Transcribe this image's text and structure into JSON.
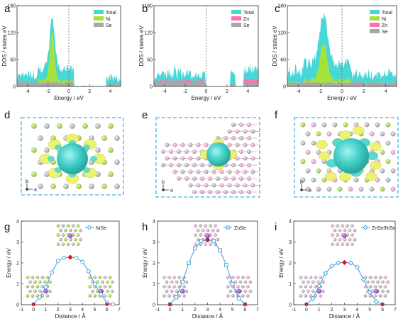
{
  "panel_letters": [
    "a",
    "b",
    "c",
    "d",
    "e",
    "f",
    "g",
    "h",
    "i"
  ],
  "colors": {
    "total": "#48d6d6",
    "ni": "#a6e23c",
    "zn": "#ff6fb0",
    "se": "#a7a7a7",
    "frame_dash": "#3bb6e0",
    "path_line": "#3a9fd8",
    "ts_marker": "#e01818",
    "iso_yellow": "#eef26a",
    "iso_cyan": "#4fd8d0"
  },
  "dos_panels": [
    {
      "id": "a",
      "ylabel": "DOS / states eV",
      "xlabel": "Energy / eV",
      "yticks": [
        "0",
        "60",
        "120",
        "180"
      ],
      "xticks": [
        "-4",
        "-2",
        "0",
        "2",
        "4"
      ],
      "legend": [
        {
          "name": "Total",
          "color": "#48d6d6"
        },
        {
          "name": "Ni",
          "color": "#a6e23c"
        },
        {
          "name": "Se",
          "color": "#a7a7a7"
        }
      ]
    },
    {
      "id": "b",
      "ylabel": "DOS / states eV",
      "xlabel": "Energy / eV",
      "yticks": [
        "0",
        "60",
        "120",
        "180"
      ],
      "xticks": [
        "-4",
        "-2",
        "0",
        "2",
        "4"
      ],
      "legend": [
        {
          "name": "Total",
          "color": "#48d6d6"
        },
        {
          "name": "Zn",
          "color": "#ff6fb0"
        },
        {
          "name": "Se",
          "color": "#a7a7a7"
        }
      ]
    },
    {
      "id": "c",
      "ylabel": "DOS / states eV",
      "xlabel": "Energy / eV",
      "yticks": [
        "0",
        "60",
        "120",
        "180"
      ],
      "xticks": [
        "-4",
        "-2",
        "0",
        "2",
        "4"
      ],
      "legend": [
        {
          "name": "Total",
          "color": "#48d6d6"
        },
        {
          "name": "Ni",
          "color": "#a6e23c"
        },
        {
          "name": "Zn",
          "color": "#ff6fb0"
        },
        {
          "name": "Se",
          "color": "#a7a7a7"
        }
      ]
    }
  ],
  "structure_panels": [
    {
      "id": "d",
      "axis_b": "b",
      "axis_a": "a"
    },
    {
      "id": "e",
      "axis_b": "b",
      "axis_a": "a"
    },
    {
      "id": "f",
      "axis_b": "b",
      "axis_a": "a"
    }
  ],
  "chart_data": [
    {
      "type": "line",
      "panel": "a",
      "title": "",
      "xlabel": "Energy / eV",
      "ylabel": "DOS / states eV",
      "xlim": [
        -5,
        5
      ],
      "ylim": [
        0,
        180
      ],
      "series": [
        {
          "name": "Total"
        },
        {
          "name": "Ni"
        },
        {
          "name": "Se"
        }
      ]
    },
    {
      "type": "line",
      "panel": "b",
      "title": "",
      "xlabel": "Energy / eV",
      "ylabel": "DOS / states eV",
      "xlim": [
        -5,
        5
      ],
      "ylim": [
        0,
        180
      ],
      "series": [
        {
          "name": "Total"
        },
        {
          "name": "Zn"
        },
        {
          "name": "Se"
        }
      ]
    },
    {
      "type": "line",
      "panel": "c",
      "title": "",
      "xlabel": "Energy / eV",
      "ylabel": "DOS / states eV",
      "xlim": [
        -5,
        5
      ],
      "ylim": [
        0,
        180
      ],
      "series": [
        {
          "name": "Total"
        },
        {
          "name": "Ni"
        },
        {
          "name": "Zn"
        },
        {
          "name": "Se"
        }
      ]
    },
    {
      "type": "line",
      "panel": "g",
      "title": "",
      "xlabel": "Distance / Å",
      "ylabel": "Energy / eV",
      "xlim": [
        -1,
        7
      ],
      "ylim": [
        0,
        4
      ],
      "xticks": [
        "-1",
        "0",
        "1",
        "2",
        "3",
        "4",
        "5",
        "6",
        "7"
      ],
      "yticks": [
        "0",
        "1",
        "2",
        "3",
        "4"
      ],
      "series": [
        {
          "name": "NiSe",
          "x": [
            0,
            0.5,
            1,
            1.5,
            2,
            2.5,
            3,
            3.5,
            4,
            4.5,
            5,
            5.5,
            6,
            6.5
          ],
          "y": [
            0.02,
            0.35,
            0.85,
            1.55,
            2.1,
            2.25,
            2.27,
            2.25,
            2.05,
            1.6,
            1.0,
            0.5,
            0.1,
            0.02
          ]
        }
      ],
      "ts": {
        "x": 3,
        "y": 2.27
      }
    },
    {
      "type": "line",
      "panel": "h",
      "title": "",
      "xlabel": "Distance / Å",
      "ylabel": "Energy / eV",
      "xlim": [
        -1,
        7
      ],
      "ylim": [
        0,
        4
      ],
      "xticks": [
        "-1",
        "0",
        "1",
        "2",
        "3",
        "4",
        "5",
        "6",
        "7"
      ],
      "yticks": [
        "0",
        "1",
        "2",
        "3",
        "4"
      ],
      "series": [
        {
          "name": "ZnSe",
          "x": [
            0,
            0.5,
            1,
            1.5,
            2,
            2.5,
            3,
            3.5,
            4,
            4.5,
            5,
            5.5,
            6
          ],
          "y": [
            0.02,
            0.35,
            1.1,
            2.0,
            2.7,
            3.05,
            3.1,
            3.05,
            2.6,
            1.9,
            1.0,
            0.3,
            0.02
          ]
        }
      ],
      "ts": {
        "x": 3,
        "y": 3.1
      }
    },
    {
      "type": "line",
      "panel": "i",
      "title": "",
      "xlabel": "Distance / Å",
      "ylabel": "Energy / eV",
      "xlim": [
        -1,
        7
      ],
      "ylim": [
        0,
        4
      ],
      "xticks": [
        "-1",
        "0",
        "1",
        "2",
        "3",
        "4",
        "5",
        "6",
        "7"
      ],
      "yticks": [
        "0",
        "1",
        "2",
        "3",
        "4"
      ],
      "series": [
        {
          "name": "ZnSe/NiSe",
          "x": [
            0,
            0.5,
            1,
            1.5,
            2,
            2.5,
            3,
            3.5,
            4,
            4.5,
            5,
            5.5,
            6
          ],
          "y": [
            0.02,
            0.3,
            0.9,
            1.5,
            1.85,
            2.0,
            2.02,
            2.0,
            1.8,
            1.2,
            0.6,
            0.15,
            0.02
          ]
        }
      ],
      "ts": {
        "x": 3,
        "y": 2.02
      }
    }
  ]
}
